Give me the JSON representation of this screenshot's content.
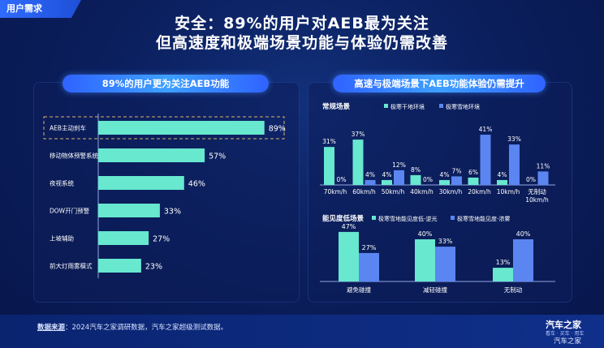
{
  "header": {
    "tag": "用户需求",
    "title_line1": "安全：89%的用户对AEB最为关注",
    "title_line2": "但高速度和极端场景功能与体验仍需改善"
  },
  "colors": {
    "teal": "#67e8cf",
    "blue": "#5b86f2",
    "highlight_border": "#d9b36a"
  },
  "chart_data": [
    {
      "type": "bar",
      "orientation": "horizontal",
      "title": "89%的用户更为关注AEB功能",
      "categories": [
        "AEB主动刹车",
        "移动物体预警系统",
        "夜视系统",
        "DOW开门预警",
        "上坡辅助",
        "前大灯雨雾模式"
      ],
      "values": [
        89,
        57,
        46,
        33,
        27,
        23
      ],
      "value_labels": [
        "89%",
        "57%",
        "46%",
        "33%",
        "27%",
        "23%"
      ],
      "highlight": "AEB主动刹车",
      "xlim": [
        0,
        100
      ]
    },
    {
      "type": "bar",
      "panel_title": "高速与极端场景下AEB功能体验仍需提升",
      "title": "常规场景",
      "categories": [
        "70km/h",
        "60km/h",
        "50km/h",
        "40km/h",
        "30km/h",
        "20km/h",
        "10km/h",
        "无制动"
      ],
      "category_line2": [
        "",
        "",
        "",
        "",
        "",
        "",
        "",
        "10km/h"
      ],
      "series": [
        {
          "name": "极寒干地环境",
          "values": [
            31,
            37,
            4,
            8,
            4,
            6,
            4,
            0
          ],
          "labels": [
            "31%",
            "37%",
            "4%",
            "8%",
            "4%",
            "6%",
            "4%",
            "0%"
          ]
        },
        {
          "name": "极寒雪地环境",
          "values": [
            0,
            4,
            12,
            0,
            7,
            41,
            33,
            11
          ],
          "labels": [
            "0%",
            "4%",
            "12%",
            "0%",
            "7%",
            "41%",
            "33%",
            "11%"
          ]
        }
      ],
      "ylim": [
        0,
        45
      ]
    },
    {
      "type": "bar",
      "title": "能见度低场景",
      "categories": [
        "避免碰撞",
        "减轻碰撞",
        "无制动"
      ],
      "series": [
        {
          "name": "极寒雪地能见度低-逆光",
          "values": [
            47,
            40,
            13
          ],
          "labels": [
            "47%",
            "40%",
            "13%"
          ]
        },
        {
          "name": "极寒雪地能见度-浓雾",
          "values": [
            27,
            33,
            40
          ],
          "labels": [
            "27%",
            "33%",
            "40%"
          ]
        }
      ],
      "ylim": [
        0,
        50
      ]
    }
  ],
  "footer": {
    "source_label": "数据来源",
    "source_text": "：2024汽车之家调研数据，汽车之家超级测试数据。",
    "logo": "汽车之家",
    "logo_sub": "看车 · 买车 · 用车",
    "watermark": "汽车之家"
  }
}
